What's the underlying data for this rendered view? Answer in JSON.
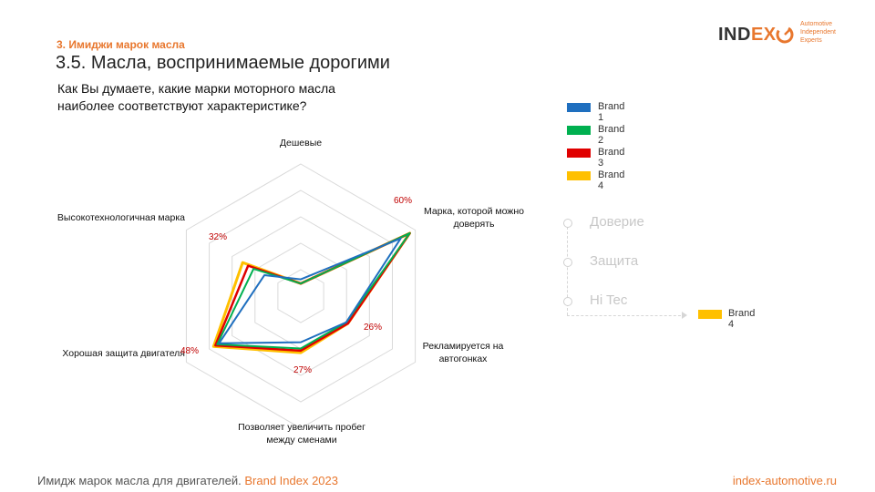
{
  "header": {
    "section": "3. Имиджи марок масла",
    "title": "3.5. Масла, воспринимаемые дорогими",
    "question": "Как Вы думаете, какие марки моторного масла наиболее соответствуют характеристике?"
  },
  "logo": {
    "word_pre": "IND",
    "word_x": "EX",
    "sub": [
      "Automotive",
      "Independent",
      "Experts"
    ]
  },
  "filters": {
    "items": [
      "Доверие",
      "Защита",
      "Hi Tec"
    ],
    "selected_tag": "Brand 4"
  },
  "footer": {
    "left_text": "Имидж марок масла для двигателей.",
    "left_highlight": "Brand Index 2023",
    "right_text": "index-automotive.ru"
  },
  "colors": {
    "accent": "#e8772e",
    "Brand 1": "#1f6fbf",
    "Brand 2": "#00b050",
    "Brand 3": "#e00000",
    "Brand 4": "#ffc000",
    "grid": "#d9d9d9",
    "value_label": "#c00000"
  },
  "chart_data": {
    "type": "radar",
    "axes": [
      [
        "Дешевые"
      ],
      [
        "Марка, которой можно",
        "доверять"
      ],
      [
        "Рекламируется на",
        "автогонках"
      ],
      [
        "Позволяет увеличить пробег",
        "между сменами"
      ],
      [
        "Хорошая защита двигателя"
      ],
      [
        "Высокотехнологичная марка"
      ]
    ],
    "rmax": 63,
    "grid_levels": 5,
    "series": [
      {
        "name": "Brand 1",
        "values": [
          8,
          55,
          25,
          22,
          45,
          20
        ]
      },
      {
        "name": "Brand 2",
        "values": [
          6,
          60,
          25,
          25,
          46,
          26
        ]
      },
      {
        "name": "Brand 3",
        "values": [
          6,
          60,
          26,
          26,
          47,
          29
        ]
      },
      {
        "name": "Brand 4",
        "values": [
          6,
          60,
          26,
          27,
          48,
          32
        ]
      }
    ],
    "value_labels": [
      "",
      "60%",
      "26%",
      "27%",
      "48%",
      "32%"
    ],
    "legend": {
      "position": "right",
      "entries": [
        "Brand 1",
        "Brand 2",
        "Brand 3",
        "Brand 4"
      ]
    }
  }
}
